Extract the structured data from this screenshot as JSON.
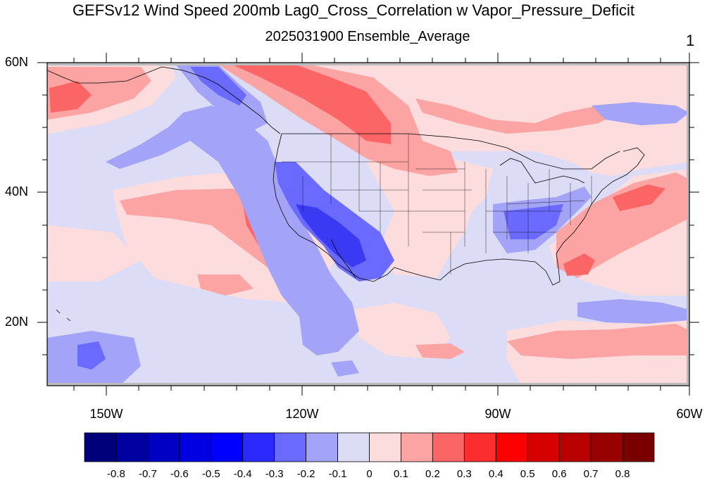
{
  "title": "GEFSv12 Wind Speed 200mb Lag0_Cross_Correlation w Vapor_Pressure_Deficit",
  "subtitle": "2025031900 Ensemble_Average",
  "corner_label": "1",
  "lat_labels": [
    "60N",
    "40N",
    "20N"
  ],
  "lon_labels": [
    "150W",
    "120W",
    "90W",
    "60W"
  ],
  "colorbar": {
    "labels": [
      "-0.8",
      "-0.7",
      "-0.6",
      "-0.5",
      "-0.4",
      "-0.3",
      "-0.2",
      "-0.1",
      "0",
      "0.1",
      "0.2",
      "0.3",
      "0.4",
      "0.5",
      "0.6",
      "0.7",
      "0.8"
    ],
    "colors": [
      "#00007a",
      "#0000a0",
      "#0000c4",
      "#0000e0",
      "#0000ff",
      "#2a2aff",
      "#6a6aff",
      "#a3a3f7",
      "#dcdcf6",
      "#fcdcdc",
      "#fca3a3",
      "#fc6565",
      "#fc2d2d",
      "#fc0000",
      "#d60000",
      "#b80000",
      "#990000",
      "#7a0000"
    ]
  },
  "colors": {
    "light_blue": "#dcdcf6",
    "mid_blue": "#a3a3f7",
    "blue": "#6a6aff",
    "dark_blue": "#3030ee",
    "light_red": "#fcdcdc",
    "mid_red": "#fca3a3",
    "red": "#fc6565",
    "missing": "#bbbbbb"
  }
}
